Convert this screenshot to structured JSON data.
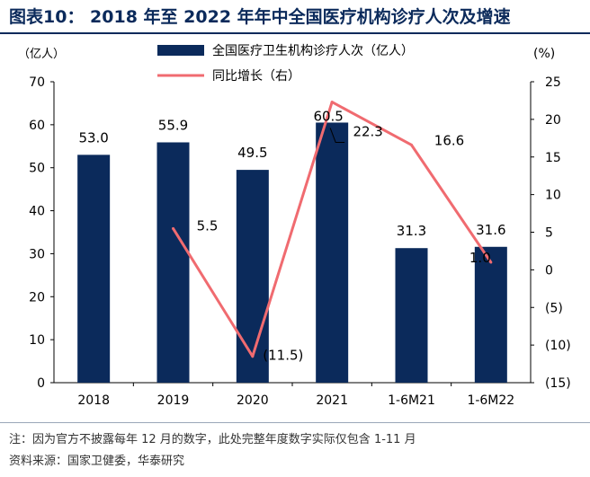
{
  "title": "图表10： 2018 年至 2022 年年中全国医疗机构诊疗人次及增速",
  "footnote": "注：因为官方不披露每年 12 月的数字，此处完整年度数字实际仅包含 1-11 月",
  "source": "资料来源：国家卫健委，华泰研究",
  "colors": {
    "bar": "#0b2a5b",
    "line": "#f06b70",
    "title": "#0b2a5b"
  },
  "chart_data": {
    "type": "bar",
    "categories": [
      "2018",
      "2019",
      "2020",
      "2021",
      "1-6M21",
      "1-6M22"
    ],
    "series": [
      {
        "name": "全国医疗卫生机构诊疗人次（亿人）",
        "type": "bar",
        "axis": "left",
        "values": [
          53.0,
          55.9,
          49.5,
          60.5,
          31.3,
          31.6
        ],
        "labels": [
          "53.0",
          "55.9",
          "49.5",
          "60.5",
          "31.3",
          "31.6"
        ]
      },
      {
        "name": "同比增长（右）",
        "type": "line",
        "axis": "right",
        "values": [
          null,
          5.5,
          -11.5,
          22.3,
          16.6,
          1.0
        ],
        "labels": [
          "",
          "5.5",
          "(11.5)",
          "22.3",
          "16.6",
          "1.0"
        ]
      }
    ],
    "ylabel_left": "（亿人）",
    "ylabel_right": "(%)",
    "ylim_left": [
      0,
      70
    ],
    "ylim_right": [
      -15,
      25
    ],
    "yticks_left": [
      "0",
      "10",
      "20",
      "30",
      "40",
      "50",
      "60",
      "70"
    ],
    "yticks_right": [
      "(15)",
      "(10)",
      "(5)",
      "0",
      "5",
      "10",
      "15",
      "20",
      "25"
    ],
    "legend_position": "top-center",
    "grid": false
  }
}
